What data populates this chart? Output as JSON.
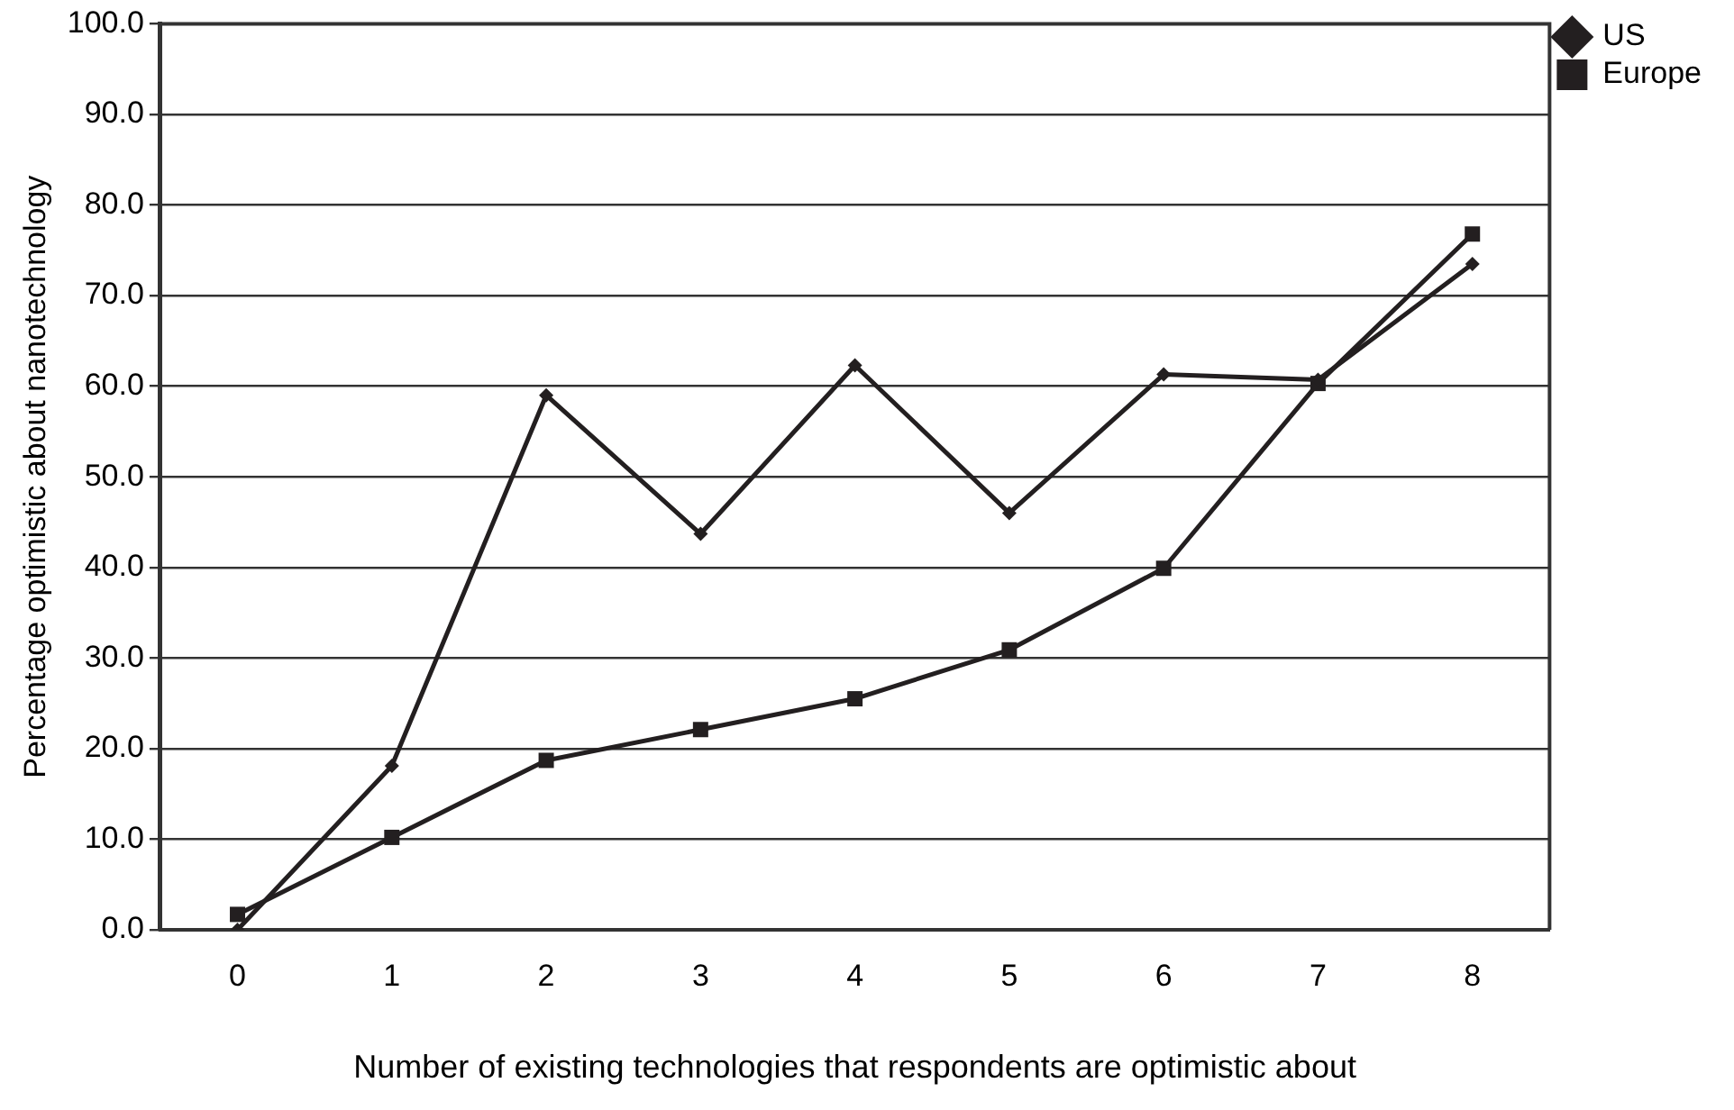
{
  "chart_data": {
    "type": "line",
    "xlabel": "Number of existing technologies that respondents are optimistic about",
    "ylabel": "Percentage optimistic about nanotechnology",
    "categories": [
      "0",
      "1",
      "2",
      "3",
      "4",
      "5",
      "6",
      "7",
      "8"
    ],
    "series": [
      {
        "name": "US",
        "color": "#231f20",
        "marker": "diamond",
        "values": [
          0.0,
          18.1,
          59.0,
          43.7,
          62.3,
          46.0,
          61.3,
          60.7,
          73.5
        ]
      },
      {
        "name": "Europe",
        "color": "#231f20",
        "marker": "square",
        "values": [
          1.7,
          10.2,
          18.7,
          22.1,
          25.5,
          30.9,
          39.9,
          60.3,
          76.8
        ]
      }
    ],
    "ylim": [
      0,
      100
    ],
    "yticks": [
      {
        "value": 0,
        "label": "0.0"
      },
      {
        "value": 10,
        "label": "10.0"
      },
      {
        "value": 20,
        "label": "20.0"
      },
      {
        "value": 30,
        "label": "30.0"
      },
      {
        "value": 40,
        "label": "40.0"
      },
      {
        "value": 50,
        "label": "50.0"
      },
      {
        "value": 60,
        "label": "60.0"
      },
      {
        "value": 70,
        "label": "70.0"
      },
      {
        "value": 80,
        "label": "80.0"
      },
      {
        "value": 90,
        "label": "90.0"
      },
      {
        "value": 100,
        "label": "100.0"
      }
    ],
    "grid": "y",
    "legend": "top right",
    "line_style": "solid"
  }
}
